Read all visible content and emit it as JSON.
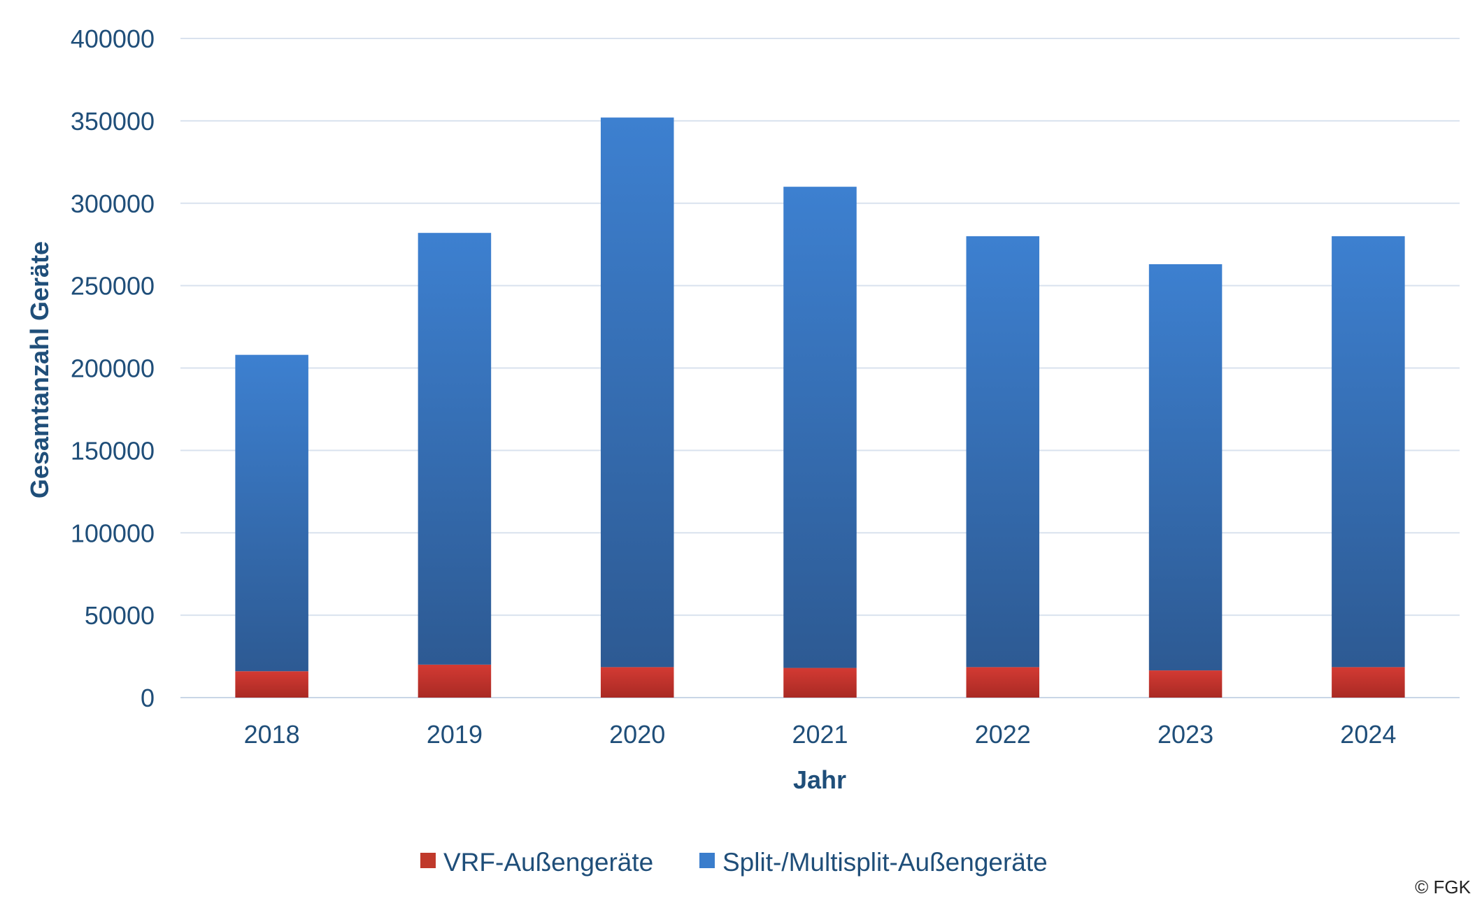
{
  "chart_data": {
    "type": "bar",
    "stacked": true,
    "categories": [
      "2018",
      "2019",
      "2020",
      "2021",
      "2022",
      "2023",
      "2024"
    ],
    "series": [
      {
        "name": "VRF-Außengeräte",
        "color": "#c0392b",
        "values": [
          16000,
          20000,
          18500,
          18000,
          18500,
          16500,
          18500
        ]
      },
      {
        "name": "Split-/Multisplit-Außengeräte",
        "color": "#3a7dcc",
        "values": [
          192000,
          262000,
          333500,
          292000,
          261500,
          246500,
          261500
        ]
      }
    ],
    "y_ticks": [
      "0",
      "50000",
      "100000",
      "150000",
      "200000",
      "250000",
      "300000",
      "350000",
      "400000"
    ],
    "ylim": [
      0,
      400000
    ],
    "xlabel": "Jahr",
    "ylabel": "Gesamtanzahl Geräte",
    "grid": true,
    "legend_position": "bottom"
  },
  "copyright": "© FGK"
}
